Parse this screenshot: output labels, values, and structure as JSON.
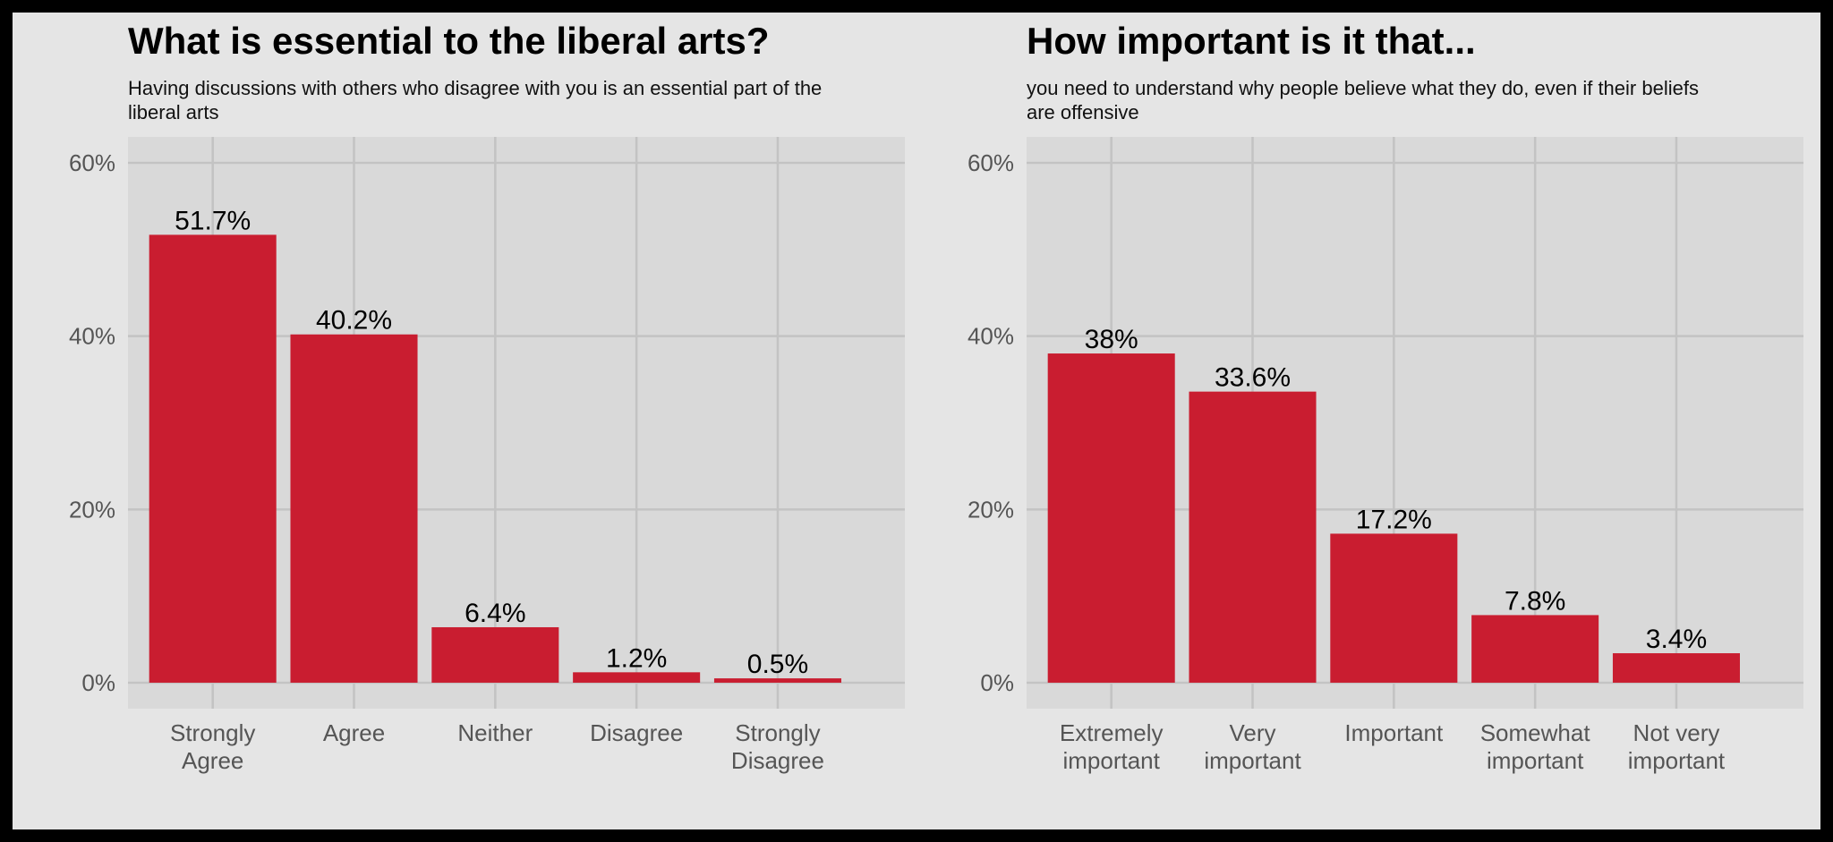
{
  "colors": {
    "bar": "#c91d30",
    "panel_background": "#d9d9d9",
    "figure_background": "#e5e5e5",
    "grid": "#c3c3c3",
    "tick_text": "#555555",
    "label_text": "#111111"
  },
  "chart_data": [
    {
      "type": "bar",
      "title": "What is essential to the liberal arts?",
      "subtitle": "Having discussions with others who disagree with you is an essential part of the liberal arts",
      "categories": [
        [
          "Strongly",
          "Agree"
        ],
        [
          "Agree"
        ],
        [
          "Neither"
        ],
        [
          "Disagree"
        ],
        [
          "Strongly",
          "Disagree"
        ]
      ],
      "values": [
        51.7,
        40.2,
        6.4,
        1.2,
        0.5
      ],
      "value_labels": [
        "51.7%",
        "40.2%",
        "6.4%",
        "1.2%",
        "0.5%"
      ],
      "yticks": [
        0,
        20,
        40,
        60
      ],
      "ytick_labels": [
        "0%",
        "20%",
        "40%",
        "60%"
      ],
      "ylim": [
        -3,
        63
      ],
      "grid": true,
      "xlabel": "",
      "ylabel": ""
    },
    {
      "type": "bar",
      "title": "How important is it that...",
      "subtitle": "you need to understand why people believe what they do, even if their beliefs are offensive",
      "categories": [
        [
          "Extremely",
          "important"
        ],
        [
          "Very",
          "important"
        ],
        [
          "Important"
        ],
        [
          "Somewhat",
          "important"
        ],
        [
          "Not very",
          "important"
        ]
      ],
      "values": [
        38,
        33.6,
        17.2,
        7.8,
        3.4
      ],
      "value_labels": [
        "38%",
        "33.6%",
        "17.2%",
        "7.8%",
        "3.4%"
      ],
      "yticks": [
        0,
        20,
        40,
        60
      ],
      "ytick_labels": [
        "0%",
        "20%",
        "40%",
        "60%"
      ],
      "ylim": [
        -3,
        63
      ],
      "grid": true,
      "xlabel": "",
      "ylabel": ""
    }
  ]
}
